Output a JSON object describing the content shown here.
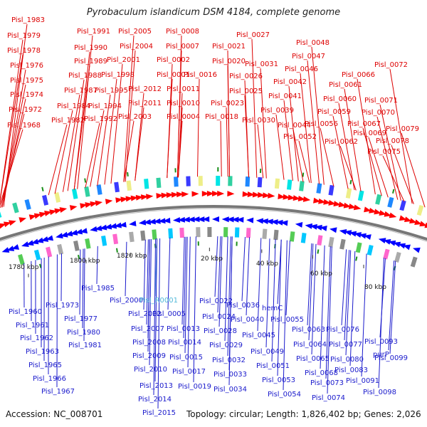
{
  "title": "Pyrobaculum islandicum DSM 4184, complete genome",
  "accession": "Accession: NC_008701",
  "summary": "Topology: circular; Length: 1,826,402 bp; Genes: 2,026",
  "colors": {
    "forward_label": "#dd0000",
    "reverse_label": "#1a1acc",
    "highlight_label": "#4fb8d8",
    "forward_arrow": "#ff0000",
    "reverse_arrow": "#0000ff",
    "backbone": "#777777",
    "rrna_tick": "#1a8f1a"
  },
  "ticks": [
    "1780 kbp",
    "1800 kbp",
    "1820 kbp",
    "20 kbp",
    "40 kbp",
    "60 kbp",
    "80 kbp"
  ],
  "forward_labels": [
    "Pisl_1983",
    "Pisl_1979",
    "Pisl_1978",
    "Pisl_1976",
    "Pisl_1975",
    "Pisl_1974",
    "Pisl_1972",
    "Pisl_1968",
    "Pisl_1991",
    "Pisl_1990",
    "Pisl_1989",
    "Pisl_1988",
    "Pisl_1987",
    "Pisl_1984",
    "Pisl_1982",
    "Pisl_1994",
    "Pisl_1992",
    "Pisl_1995",
    "Pisl_1998",
    "Pisl_2001",
    "Pisl_2004",
    "Pisl_2005",
    "Pisl_2012",
    "Pisl_2011",
    "Pisl_2003",
    "Pisl_0008",
    "Pisl_0007",
    "Pisl_0002",
    "Pisl_0001",
    "Pisl_0011",
    "Pisl_0010",
    "Pisl_0004",
    "Pisl_0016",
    "Pisl_0018",
    "Pisl_0021",
    "Pisl_0020",
    "Pisl_0023",
    "Pisl_0027",
    "Pisl_0026",
    "Pisl_0025",
    "Pisl_0031",
    "Pisl_0030",
    "Pisl_0039",
    "Pisl_0041",
    "Pisl_0042",
    "Pisl_0044",
    "Pisl_0046",
    "Pisl_0047",
    "Pisl_0048",
    "Pisl_0052",
    "Pisl_0056",
    "Pisl_0059",
    "Pisl_0060",
    "Pisl_0061",
    "Pisl_0062",
    "Pisl_0066",
    "Pisl_0067",
    "Pisl_0069",
    "Pisl_0070",
    "Pisl_0071",
    "Pisl_0072",
    "Pisl_0075",
    "Pisl_0078",
    "Pisl_0079"
  ],
  "reverse_labels": [
    "Pisl_1960",
    "Pisl_1961",
    "Pisl_1962",
    "Pisl_1963",
    "Pisl_1965",
    "Pisl_1966",
    "Pisl_1967",
    "Pisl_1973",
    "Pisl_1977",
    "Pisl_1980",
    "Pisl_1981",
    "Pisl_1985",
    "Pisl_2000",
    "Pisl_R0001",
    "Pisl_2002",
    "Pisl_2007",
    "Pisl_2008",
    "Pisl_2009",
    "Pisl_2010",
    "Pisl_2013",
    "Pisl_2014",
    "Pisl_2015",
    "Pisl_0005",
    "Pisl_0013",
    "Pisl_0014",
    "Pisl_0015",
    "Pisl_0017",
    "Pisl_0019",
    "Pisl_0022",
    "Pisl_0024",
    "Pisl_0028",
    "Pisl_0029",
    "Pisl_0032",
    "Pisl_0033",
    "Pisl_0034",
    "Pisl_0036",
    "hemC",
    "Pisl_0040",
    "Pisl_0045",
    "Pisl_0049",
    "Pisl_0051",
    "Pisl_0053",
    "Pisl_0054",
    "Pisl_0055",
    "Pisl_0063",
    "Pisl_0064",
    "Pisl_0065",
    "Pisl_0068",
    "Pisl_0073",
    "Pisl_0074",
    "Pisl_0076",
    "Pisl_0077",
    "Pisl_0080",
    "Pisl_0083",
    "Pisl_0091",
    "Pisl_0093",
    "purP",
    "Pisl_0098",
    "Pisl_0099"
  ]
}
